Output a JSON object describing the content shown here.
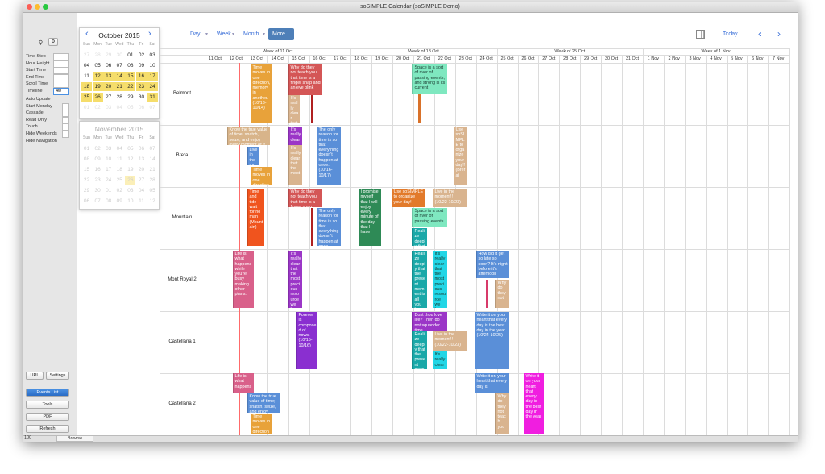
{
  "window_title": "soSIMPLE Calendar (soSIMPLE Demo)",
  "sidebar": {
    "fields": [
      "Time Step",
      "Hour Height",
      "Start Time",
      "End Time",
      "Scroll Time",
      "Timeline"
    ],
    "timeline_value": "4w",
    "options": [
      "Auto Update",
      "Start Monday",
      "Cascade",
      "Read Only",
      "Touch",
      "Hide Weekends",
      "Hide Navigation"
    ],
    "buttons": [
      "URL",
      "Settings",
      "Events List",
      "Tools",
      "PDF",
      "Refresh"
    ]
  },
  "status": {
    "zoom": "100",
    "mode": "Browse"
  },
  "mini_calendars": [
    {
      "title": "October 2015",
      "weekdays": [
        "Sun",
        "Mon",
        "Tue",
        "Wed",
        "Thu",
        "Fri",
        "Sat"
      ],
      "days": [
        [
          "27",
          "28",
          "29",
          "30",
          "01",
          "02",
          "03"
        ],
        [
          "04",
          "05",
          "06",
          "07",
          "08",
          "09",
          "10"
        ],
        [
          "11",
          "12",
          "13",
          "14",
          "15",
          "16",
          "17"
        ],
        [
          "18",
          "19",
          "20",
          "21",
          "22",
          "23",
          "24"
        ],
        [
          "25",
          "26",
          "27",
          "28",
          "29",
          "30",
          "31"
        ],
        [
          "01",
          "02",
          "03",
          "04",
          "05",
          "06",
          "07"
        ]
      ]
    },
    {
      "title": "November 2015",
      "weekdays": [
        "Sun",
        "Mon",
        "Tue",
        "Wed",
        "Thu",
        "Fri",
        "Sat"
      ],
      "days": [
        [
          "01",
          "02",
          "03",
          "04",
          "05",
          "06",
          "07"
        ],
        [
          "08",
          "09",
          "10",
          "11",
          "12",
          "13",
          "14"
        ],
        [
          "15",
          "16",
          "17",
          "18",
          "19",
          "20",
          "21"
        ],
        [
          "22",
          "23",
          "24",
          "25",
          "26",
          "27",
          "28"
        ],
        [
          "29",
          "30",
          "01",
          "02",
          "03",
          "04",
          "05"
        ],
        [
          "06",
          "07",
          "08",
          "09",
          "10",
          "11",
          "12"
        ]
      ]
    }
  ],
  "toolbar": {
    "views": [
      "Day",
      "Week",
      "Month",
      "More..."
    ],
    "today": "Today"
  },
  "weeks": [
    "Week of 11 Oct",
    "Week of 18 Oct",
    "Week of 25 Oct",
    "Week of 1 Nov"
  ],
  "days": [
    "11 Oct",
    "12 Oct",
    "13 Oct",
    "14 Oct",
    "15 Oct",
    "16 Oct",
    "17 Oct",
    "18 Oct",
    "19 Oct",
    "20 Oct",
    "21 Oct",
    "22 Oct",
    "23 Oct",
    "24 Oct",
    "25 Oct",
    "26 Oct",
    "27 Oct",
    "28 Oct",
    "29 Oct",
    "30 Oct",
    "31 Oct",
    "1 Nov",
    "2 Nov",
    "3 Nov",
    "4 Nov",
    "5 Nov",
    "6 Nov",
    "7 Nov"
  ],
  "resources": [
    "Belmont",
    "Brera",
    "Mountain",
    "Mont Royal 2",
    "Castellana 1",
    "Castellana 2"
  ],
  "events": [
    {
      "text": "Time moves in one direction, memory in another. (10/13-10/14)",
      "color": "#e8a23a"
    },
    {
      "text": "Why do they not teach you that time is a finger snap and an eye blink",
      "color": "#d45656"
    },
    {
      "text": "It's really clear that",
      "color": "#d9b48f"
    },
    {
      "text": "Space is a sort of river of passing events, and strong is its current",
      "color": "#7fe8c0"
    },
    {
      "text": "Know the true value of time; snatch, seize, and enjoy every moment of it.",
      "color": "#d8b48a"
    },
    {
      "text": "Live in the moment!!",
      "color": "#5a8fd8"
    },
    {
      "text": "Time moves in one direction",
      "color": "#e8a23a"
    },
    {
      "text": "It's really clear",
      "color": "#9b36c7"
    },
    {
      "text": "It's really clear that the most",
      "color": "#d9b48f"
    },
    {
      "text": "The only reason for time is so that everything doesn't happen at once. (10/16-10/17)",
      "color": "#5a8fd8"
    },
    {
      "text": "Use soSIMPLE to organize your day!! (Brera)",
      "color": "#d9b48f"
    },
    {
      "text": "Time and tide wait for no man (Mountain)",
      "color": "#f0541e"
    },
    {
      "text": "Why do they not teach you that time is a finger snap",
      "color": "#d45656"
    },
    {
      "text": "The only reason for time is so that everything doesn't happen at once",
      "color": "#5a8fd8"
    },
    {
      "text": "I promise myself that I will enjoy every minute of the day that I have",
      "color": "#2e8a56"
    },
    {
      "text": "Use soSIMPLE to organize your day!!",
      "color": "#e27a2a"
    },
    {
      "text": "Live in the moment!! (10/22-10/23)",
      "color": "#d9b48f"
    },
    {
      "text": "Space is a sort of river of passing events",
      "color": "#7fe8c0"
    },
    {
      "text": "Realize deeply that",
      "color": "#1aa8a8"
    },
    {
      "text": "Life is what happens while you're busy making other plans.",
      "color": "#d9608a"
    },
    {
      "text": "It's really clear that the most precious resource we have",
      "color": "#9b36c7"
    },
    {
      "text": "Realize deeply that the present moment is all you have",
      "color": "#1aa8a8"
    },
    {
      "text": "It's really clear that the most precious resource we have",
      "color": "#22d6e6"
    },
    {
      "text": "How did it get so late so soon? It's night before it's afternoon",
      "color": "#5a8fd8"
    },
    {
      "text": "Why do they not",
      "color": "#d9b48f"
    },
    {
      "text": "Forever is composed of nows. (10/15-10/16)",
      "color": "#8a2fd0"
    },
    {
      "text": "Dost thou love life? Then do not squander time",
      "color": "#9b36c7"
    },
    {
      "text": "Realize deeply that the present moment",
      "color": "#1aa8a8"
    },
    {
      "text": "Live in the moment!! (10/22-10/23)",
      "color": "#d9b48f"
    },
    {
      "text": "It's really clear",
      "color": "#22d6e6"
    },
    {
      "text": "Write it on your heart that every day is the best day in the year. (10/24-10/25)",
      "color": "#5a8fd8"
    },
    {
      "text": "Life is what happens",
      "color": "#d9608a"
    },
    {
      "text": "Know the true value of time; snatch, seize, and enjoy",
      "color": "#5a8fd8"
    },
    {
      "text": "Time moves in one direction",
      "color": "#e8a23a"
    },
    {
      "text": "Write it on your heart that every day is",
      "color": "#5a8fd8"
    },
    {
      "text": "Why do they not teach you",
      "color": "#d9b48f"
    },
    {
      "text": "Write it on your heart that every day is the best day in the year",
      "color": "#f01ee0"
    }
  ]
}
